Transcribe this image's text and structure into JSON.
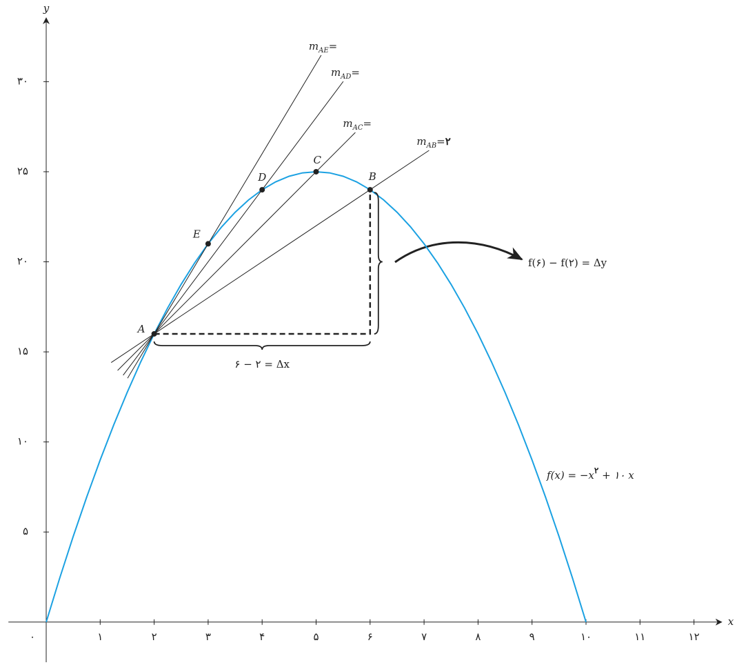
{
  "chart_data": {
    "type": "line",
    "x": [
      0,
      0.25,
      0.5,
      0.75,
      1,
      1.25,
      1.5,
      1.75,
      2,
      2.25,
      2.5,
      2.75,
      3,
      3.25,
      3.5,
      3.75,
      4,
      4.25,
      4.5,
      4.75,
      5,
      5.25,
      5.5,
      5.75,
      6,
      6.25,
      6.5,
      6.75,
      7,
      7.25,
      7.5,
      7.75,
      8,
      8.25,
      8.5,
      8.75,
      9,
      9.25,
      9.5,
      9.75,
      10
    ],
    "values": [
      0,
      2.4375,
      4.75,
      6.9375,
      9,
      10.9375,
      12.75,
      14.4375,
      16,
      17.4375,
      18.75,
      19.9375,
      21,
      21.9375,
      22.75,
      23.4375,
      24,
      24.4375,
      24.75,
      24.9375,
      25,
      24.9375,
      24.75,
      24.4375,
      24,
      23.4375,
      22.75,
      21.9375,
      21,
      19.9375,
      18.75,
      17.4375,
      16,
      14.4375,
      12.75,
      10.9375,
      9,
      6.9375,
      4.75,
      2.4375,
      0
    ],
    "color": "#1ba1e2",
    "xlabel": "x",
    "ylabel": "y",
    "xlim": [
      -0.7,
      12.5
    ],
    "ylim": [
      -2,
      33.5
    ],
    "xticks": [
      {
        "value": 0,
        "label": "۰"
      },
      {
        "value": 1,
        "label": "۱"
      },
      {
        "value": 2,
        "label": "۲"
      },
      {
        "value": 3,
        "label": "۳"
      },
      {
        "value": 4,
        "label": "۴"
      },
      {
        "value": 5,
        "label": "۵"
      },
      {
        "value": 6,
        "label": "۶"
      },
      {
        "value": 7,
        "label": "۷"
      },
      {
        "value": 8,
        "label": "۸"
      },
      {
        "value": 9,
        "label": "۹"
      },
      {
        "value": 10,
        "label": "۱۰"
      },
      {
        "value": 11,
        "label": "۱۱"
      },
      {
        "value": 12,
        "label": "۱۲"
      }
    ],
    "yticks": [
      {
        "value": 5,
        "label": "۵"
      },
      {
        "value": 10,
        "label": "۱۰"
      },
      {
        "value": 15,
        "label": "۱۵"
      },
      {
        "value": 20,
        "label": "۲۰"
      },
      {
        "value": 25,
        "label": "۲۵"
      },
      {
        "value": 30,
        "label": "۳۰"
      }
    ],
    "points": [
      {
        "label": "A",
        "x": 2,
        "y": 16
      },
      {
        "label": "B",
        "x": 6,
        "y": 24
      },
      {
        "label": "C",
        "x": 5,
        "y": 25
      },
      {
        "label": "D",
        "x": 4,
        "y": 24
      },
      {
        "label": "E",
        "x": 3,
        "y": 21
      }
    ],
    "secants": [
      {
        "to": "B",
        "name": "m",
        "sub": "AB",
        "eq": "=",
        "value_label": "۲"
      },
      {
        "to": "C",
        "name": "m",
        "sub": "AC",
        "eq": "="
      },
      {
        "to": "D",
        "name": "m",
        "sub": "AD",
        "eq": "="
      },
      {
        "to": "E",
        "name": "m",
        "sub": "AE",
        "eq": "="
      }
    ],
    "delta_y_label": "f(۶) − f(۲) = Δy",
    "delta_x_label": "۶ − ۲ = Δx",
    "function_label": {
      "lhs": "f(x) = −x",
      "exp": "۲",
      "rhs": " + ۱۰ x"
    }
  }
}
